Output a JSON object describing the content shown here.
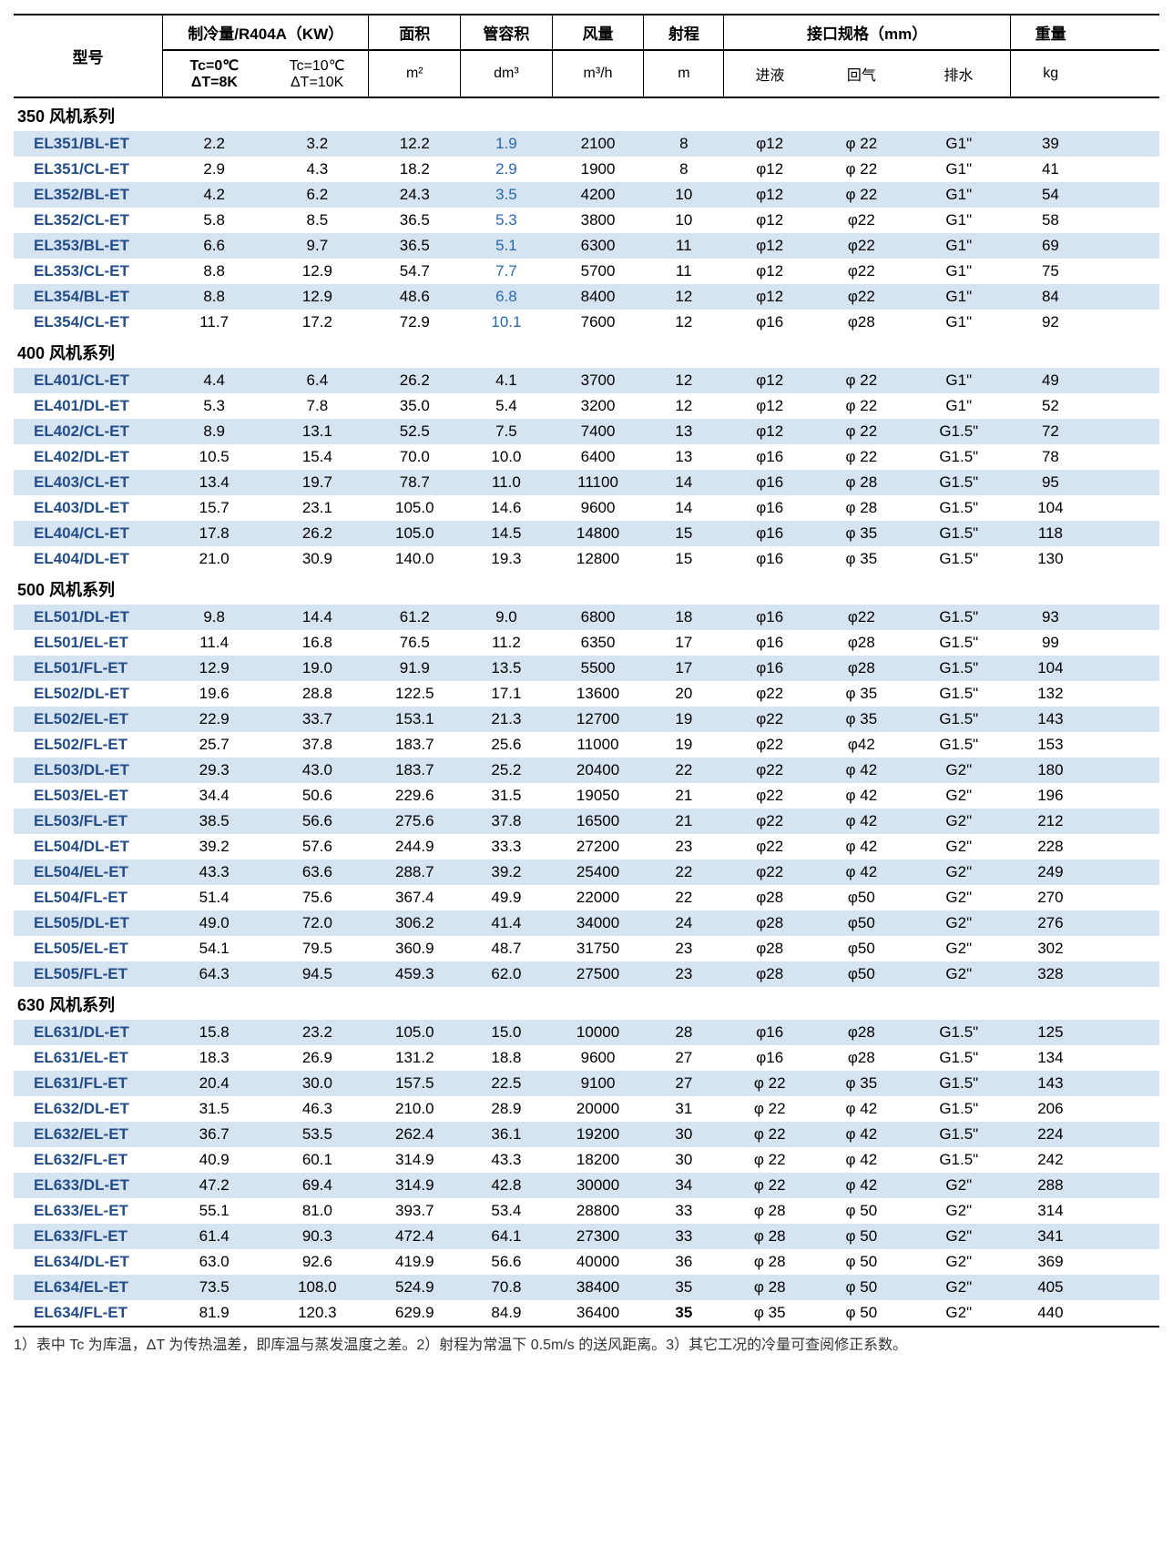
{
  "header": {
    "model": "型号",
    "cooling": "制冷量/R404A（KW）",
    "area": "面积",
    "pipeVol": "管容积",
    "airflow": "风量",
    "throw": "射程",
    "ports": "接口规格（mm）",
    "weight": "重量",
    "sub": {
      "tc0": "Tc=0℃\nΔT=8K",
      "tc10": "Tc=10℃\nΔT=10K",
      "area_u": "m²",
      "pipe_u": "dm³",
      "air_u": "m³/h",
      "throw_u": "m",
      "inlet": "进液",
      "return": "回气",
      "drain": "排水",
      "weight_u": "kg"
    }
  },
  "colors": {
    "shade": "#d6e3f0",
    "model_text": "#234e8a",
    "vol_blue": "#2868b0"
  },
  "colwidths_pct": [
    13,
    9,
    9,
    8,
    8,
    8,
    7,
    8,
    8,
    9,
    7,
    6
  ],
  "sections": [
    {
      "title": "350 风机系列",
      "rows": [
        {
          "m": "EL351/BL-ET",
          "c0": "2.2",
          "c10": "3.2",
          "a": "12.2",
          "v": "1.9",
          "af": "2100",
          "th": "8",
          "in": "φ12",
          "ret": "φ 22",
          "dr": "G1\"",
          "w": "39",
          "sh": true,
          "vb": true
        },
        {
          "m": "EL351/CL-ET",
          "c0": "2.9",
          "c10": "4.3",
          "a": "18.2",
          "v": "2.9",
          "af": "1900",
          "th": "8",
          "in": "φ12",
          "ret": "φ 22",
          "dr": "G1\"",
          "w": "41",
          "sh": false,
          "vb": true
        },
        {
          "m": "EL352/BL-ET",
          "c0": "4.2",
          "c10": "6.2",
          "a": "24.3",
          "v": "3.5",
          "af": "4200",
          "th": "10",
          "in": "φ12",
          "ret": "φ 22",
          "dr": "G1\"",
          "w": "54",
          "sh": true,
          "vb": true
        },
        {
          "m": "EL352/CL-ET",
          "c0": "5.8",
          "c10": "8.5",
          "a": "36.5",
          "v": "5.3",
          "af": "3800",
          "th": "10",
          "in": "φ12",
          "ret": "φ22",
          "dr": "G1\"",
          "w": "58",
          "sh": false,
          "vb": true
        },
        {
          "m": "EL353/BL-ET",
          "c0": "6.6",
          "c10": "9.7",
          "a": "36.5",
          "v": "5.1",
          "af": "6300",
          "th": "11",
          "in": "φ12",
          "ret": "φ22",
          "dr": "G1\"",
          "w": "69",
          "sh": true,
          "vb": true
        },
        {
          "m": "EL353/CL-ET",
          "c0": "8.8",
          "c10": "12.9",
          "a": "54.7",
          "v": "7.7",
          "af": "5700",
          "th": "11",
          "in": "φ12",
          "ret": "φ22",
          "dr": "G1\"",
          "w": "75",
          "sh": false,
          "vb": true
        },
        {
          "m": "EL354/BL-ET",
          "c0": "8.8",
          "c10": "12.9",
          "a": "48.6",
          "v": "6.8",
          "af": "8400",
          "th": "12",
          "in": "φ12",
          "ret": "φ22",
          "dr": "G1\"",
          "w": "84",
          "sh": true,
          "vb": true
        },
        {
          "m": "EL354/CL-ET",
          "c0": "11.7",
          "c10": "17.2",
          "a": "72.9",
          "v": "10.1",
          "af": "7600",
          "th": "12",
          "in": "φ16",
          "ret": "φ28",
          "dr": "G1\"",
          "w": "92",
          "sh": false,
          "vb": true
        }
      ]
    },
    {
      "title": "400 风机系列",
      "rows": [
        {
          "m": "EL401/CL-ET",
          "c0": "4.4",
          "c10": "6.4",
          "a": "26.2",
          "v": "4.1",
          "af": "3700",
          "th": "12",
          "in": "φ12",
          "ret": "φ 22",
          "dr": "G1\"",
          "w": "49",
          "sh": true
        },
        {
          "m": "EL401/DL-ET",
          "c0": "5.3",
          "c10": "7.8",
          "a": "35.0",
          "v": "5.4",
          "af": "3200",
          "th": "12",
          "in": "φ12",
          "ret": "φ 22",
          "dr": "G1\"",
          "w": "52",
          "sh": false
        },
        {
          "m": "EL402/CL-ET",
          "c0": "8.9",
          "c10": "13.1",
          "a": "52.5",
          "v": "7.5",
          "af": "7400",
          "th": "13",
          "in": "φ12",
          "ret": "φ 22",
          "dr": "G1.5\"",
          "w": "72",
          "sh": true
        },
        {
          "m": "EL402/DL-ET",
          "c0": "10.5",
          "c10": "15.4",
          "a": "70.0",
          "v": "10.0",
          "af": "6400",
          "th": "13",
          "in": "φ16",
          "ret": "φ 22",
          "dr": "G1.5\"",
          "w": "78",
          "sh": false
        },
        {
          "m": "EL403/CL-ET",
          "c0": "13.4",
          "c10": "19.7",
          "a": "78.7",
          "v": "11.0",
          "af": "11100",
          "th": "14",
          "in": "φ16",
          "ret": "φ 28",
          "dr": "G1.5\"",
          "w": "95",
          "sh": true
        },
        {
          "m": "EL403/DL-ET",
          "c0": "15.7",
          "c10": "23.1",
          "a": "105.0",
          "v": "14.6",
          "af": "9600",
          "th": "14",
          "in": "φ16",
          "ret": "φ 28",
          "dr": "G1.5\"",
          "w": "104",
          "sh": false
        },
        {
          "m": "EL404/CL-ET",
          "c0": "17.8",
          "c10": "26.2",
          "a": "105.0",
          "v": "14.5",
          "af": "14800",
          "th": "15",
          "in": "φ16",
          "ret": "φ 35",
          "dr": "G1.5\"",
          "w": "118",
          "sh": true
        },
        {
          "m": "EL404/DL-ET",
          "c0": "21.0",
          "c10": "30.9",
          "a": "140.0",
          "v": "19.3",
          "af": "12800",
          "th": "15",
          "in": "φ16",
          "ret": "φ 35",
          "dr": "G1.5\"",
          "w": "130",
          "sh": false
        }
      ]
    },
    {
      "title": "500 风机系列",
      "rows": [
        {
          "m": "EL501/DL-ET",
          "c0": "9.8",
          "c10": "14.4",
          "a": "61.2",
          "v": "9.0",
          "af": "6800",
          "th": "18",
          "in": "φ16",
          "ret": "φ22",
          "dr": "G1.5\"",
          "w": "93",
          "sh": true
        },
        {
          "m": "EL501/EL-ET",
          "c0": "11.4",
          "c10": "16.8",
          "a": "76.5",
          "v": "11.2",
          "af": "6350",
          "th": "17",
          "in": "φ16",
          "ret": "φ28",
          "dr": "G1.5\"",
          "w": "99",
          "sh": false
        },
        {
          "m": "EL501/FL-ET",
          "c0": "12.9",
          "c10": "19.0",
          "a": "91.9",
          "v": "13.5",
          "af": "5500",
          "th": "17",
          "in": "φ16",
          "ret": "φ28",
          "dr": "G1.5\"",
          "w": "104",
          "sh": true
        },
        {
          "m": "EL502/DL-ET",
          "c0": "19.6",
          "c10": "28.8",
          "a": "122.5",
          "v": "17.1",
          "af": "13600",
          "th": "20",
          "in": "φ22",
          "ret": "φ 35",
          "dr": "G1.5\"",
          "w": "132",
          "sh": false
        },
        {
          "m": "EL502/EL-ET",
          "c0": "22.9",
          "c10": "33.7",
          "a": "153.1",
          "v": "21.3",
          "af": "12700",
          "th": "19",
          "in": "φ22",
          "ret": "φ 35",
          "dr": "G1.5\"",
          "w": "143",
          "sh": true
        },
        {
          "m": "EL502/FL-ET",
          "c0": "25.7",
          "c10": "37.8",
          "a": "183.7",
          "v": "25.6",
          "af": "11000",
          "th": "19",
          "in": "φ22",
          "ret": "φ42",
          "dr": "G1.5\"",
          "w": "153",
          "sh": false
        },
        {
          "m": "EL503/DL-ET",
          "c0": "29.3",
          "c10": "43.0",
          "a": "183.7",
          "v": "25.2",
          "af": "20400",
          "th": "22",
          "in": "φ22",
          "ret": "φ 42",
          "dr": "G2\"",
          "w": "180",
          "sh": true
        },
        {
          "m": "EL503/EL-ET",
          "c0": "34.4",
          "c10": "50.6",
          "a": "229.6",
          "v": "31.5",
          "af": "19050",
          "th": "21",
          "in": "φ22",
          "ret": "φ 42",
          "dr": "G2\"",
          "w": "196",
          "sh": false
        },
        {
          "m": "EL503/FL-ET",
          "c0": "38.5",
          "c10": "56.6",
          "a": "275.6",
          "v": "37.8",
          "af": "16500",
          "th": "21",
          "in": "φ22",
          "ret": "φ 42",
          "dr": "G2\"",
          "w": "212",
          "sh": true
        },
        {
          "m": "EL504/DL-ET",
          "c0": "39.2",
          "c10": "57.6",
          "a": "244.9",
          "v": "33.3",
          "af": "27200",
          "th": "23",
          "in": "φ22",
          "ret": "φ 42",
          "dr": "G2\"",
          "w": "228",
          "sh": false
        },
        {
          "m": "EL504/EL-ET",
          "c0": "43.3",
          "c10": "63.6",
          "a": "288.7",
          "v": "39.2",
          "af": "25400",
          "th": "22",
          "in": "φ22",
          "ret": "φ 42",
          "dr": "G2\"",
          "w": "249",
          "sh": true
        },
        {
          "m": "EL504/FL-ET",
          "c0": "51.4",
          "c10": "75.6",
          "a": "367.4",
          "v": "49.9",
          "af": "22000",
          "th": "22",
          "in": "φ28",
          "ret": "φ50",
          "dr": "G2\"",
          "w": "270",
          "sh": false
        },
        {
          "m": "EL505/DL-ET",
          "c0": "49.0",
          "c10": "72.0",
          "a": "306.2",
          "v": "41.4",
          "af": "34000",
          "th": "24",
          "in": "φ28",
          "ret": "φ50",
          "dr": "G2\"",
          "w": "276",
          "sh": true
        },
        {
          "m": "EL505/EL-ET",
          "c0": "54.1",
          "c10": "79.5",
          "a": "360.9",
          "v": "48.7",
          "af": "31750",
          "th": "23",
          "in": "φ28",
          "ret": "φ50",
          "dr": "G2\"",
          "w": "302",
          "sh": false
        },
        {
          "m": "EL505/FL-ET",
          "c0": "64.3",
          "c10": "94.5",
          "a": "459.3",
          "v": "62.0",
          "af": "27500",
          "th": "23",
          "in": "φ28",
          "ret": "φ50",
          "dr": "G2\"",
          "w": "328",
          "sh": true
        }
      ]
    },
    {
      "title": "630 风机系列",
      "rows": [
        {
          "m": "EL631/DL-ET",
          "c0": "15.8",
          "c10": "23.2",
          "a": "105.0",
          "v": "15.0",
          "af": "10000",
          "th": "28",
          "in": "φ16",
          "ret": "φ28",
          "dr": "G1.5\"",
          "w": "125",
          "sh": true
        },
        {
          "m": "EL631/EL-ET",
          "c0": "18.3",
          "c10": "26.9",
          "a": "131.2",
          "v": "18.8",
          "af": "9600",
          "th": "27",
          "in": "φ16",
          "ret": "φ28",
          "dr": "G1.5\"",
          "w": "134",
          "sh": false
        },
        {
          "m": "EL631/FL-ET",
          "c0": "20.4",
          "c10": "30.0",
          "a": "157.5",
          "v": "22.5",
          "af": "9100",
          "th": "27",
          "in": "φ 22",
          "ret": "φ 35",
          "dr": "G1.5\"",
          "w": "143",
          "sh": true
        },
        {
          "m": "EL632/DL-ET",
          "c0": "31.5",
          "c10": "46.3",
          "a": "210.0",
          "v": "28.9",
          "af": "20000",
          "th": "31",
          "in": "φ 22",
          "ret": "φ 42",
          "dr": "G1.5\"",
          "w": "206",
          "sh": false
        },
        {
          "m": "EL632/EL-ET",
          "c0": "36.7",
          "c10": "53.5",
          "a": "262.4",
          "v": "36.1",
          "af": "19200",
          "th": "30",
          "in": "φ 22",
          "ret": "φ 42",
          "dr": "G1.5\"",
          "w": "224",
          "sh": true
        },
        {
          "m": "EL632/FL-ET",
          "c0": "40.9",
          "c10": "60.1",
          "a": "314.9",
          "v": "43.3",
          "af": "18200",
          "th": "30",
          "in": "φ 22",
          "ret": "φ 42",
          "dr": "G1.5\"",
          "w": "242",
          "sh": false
        },
        {
          "m": "EL633/DL-ET",
          "c0": "47.2",
          "c10": "69.4",
          "a": "314.9",
          "v": "42.8",
          "af": "30000",
          "th": "34",
          "in": "φ 22",
          "ret": "φ 42",
          "dr": "G2\"",
          "w": "288",
          "sh": true
        },
        {
          "m": "EL633/EL-ET",
          "c0": "55.1",
          "c10": "81.0",
          "a": "393.7",
          "v": "53.4",
          "af": "28800",
          "th": "33",
          "in": "φ 28",
          "ret": "φ 50",
          "dr": "G2\"",
          "w": "314",
          "sh": false
        },
        {
          "m": "EL633/FL-ET",
          "c0": "61.4",
          "c10": "90.3",
          "a": "472.4",
          "v": "64.1",
          "af": "27300",
          "th": "33",
          "in": "φ 28",
          "ret": "φ 50",
          "dr": "G2\"",
          "w": "341",
          "sh": true
        },
        {
          "m": "EL634/DL-ET",
          "c0": "63.0",
          "c10": "92.6",
          "a": "419.9",
          "v": "56.6",
          "af": "40000",
          "th": "36",
          "in": "φ 28",
          "ret": "φ 50",
          "dr": "G2\"",
          "w": "369",
          "sh": false
        },
        {
          "m": "EL634/EL-ET",
          "c0": "73.5",
          "c10": "108.0",
          "a": "524.9",
          "v": "70.8",
          "af": "38400",
          "th": "35",
          "in": "φ 28",
          "ret": "φ 50",
          "dr": "G2\"",
          "w": "405",
          "sh": true
        },
        {
          "m": "EL634/FL-ET",
          "c0": "81.9",
          "c10": "120.3",
          "a": "629.9",
          "v": "84.9",
          "af": "36400",
          "th": "35",
          "in": "φ 35",
          "ret": "φ 50",
          "dr": "G2\"",
          "w": "440",
          "sh": false,
          "thb": true
        }
      ]
    }
  ],
  "footnote": "1）表中 Tc 为库温，ΔT 为传热温差，即库温与蒸发温度之差。2）射程为常温下 0.5m/s 的送风距离。3）其它工况的冷量可查阅修正系数。"
}
